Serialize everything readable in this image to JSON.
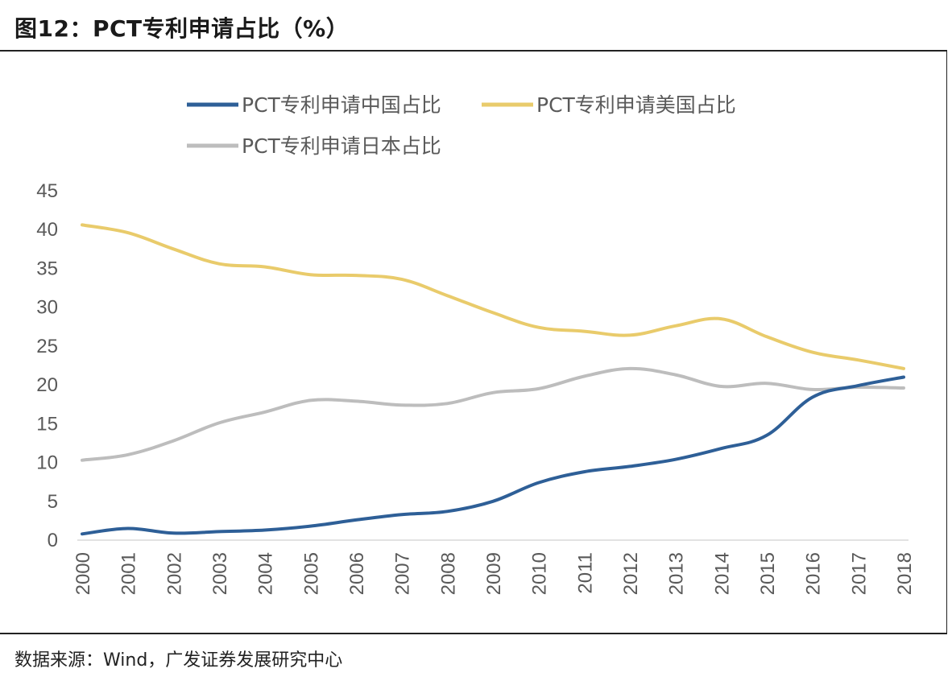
{
  "title": "图12：PCT专利申请占比（%）",
  "source": "数据来源：Wind，广发证券发展研究中心",
  "chart_data": {
    "type": "line",
    "title": "图12：PCT专利申请占比（%）",
    "xlabel": "",
    "ylabel": "",
    "ylim": [
      0,
      45
    ],
    "yticks": [
      0,
      5,
      10,
      15,
      20,
      25,
      30,
      35,
      40,
      45
    ],
    "categories": [
      "2000",
      "2001",
      "2002",
      "2003",
      "2004",
      "2005",
      "2006",
      "2007",
      "2008",
      "2009",
      "2010",
      "2011",
      "2012",
      "2013",
      "2014",
      "2015",
      "2016",
      "2017",
      "2018"
    ],
    "legend_position": "top",
    "grid": false,
    "series": [
      {
        "name": "PCT专利申请中国占比",
        "color": "#2e5f97",
        "values": [
          0.8,
          1.5,
          0.9,
          1.1,
          1.3,
          1.8,
          2.6,
          3.3,
          3.7,
          5.0,
          7.4,
          8.8,
          9.5,
          10.4,
          11.8,
          13.5,
          18.4,
          19.9,
          21.0
        ]
      },
      {
        "name": "PCT专利申请美国占比",
        "color": "#e9cb6b",
        "values": [
          40.6,
          39.6,
          37.5,
          35.6,
          35.2,
          34.2,
          34.1,
          33.6,
          31.5,
          29.3,
          27.4,
          26.9,
          26.4,
          27.6,
          28.5,
          26.2,
          24.2,
          23.2,
          22.1
        ]
      },
      {
        "name": "PCT专利申请日本占比",
        "color": "#bdbdbd",
        "values": [
          10.3,
          11.0,
          12.8,
          15.1,
          16.5,
          18.0,
          17.9,
          17.4,
          17.6,
          19.0,
          19.5,
          21.1,
          22.1,
          21.3,
          19.8,
          20.2,
          19.4,
          19.7,
          19.6
        ]
      }
    ]
  }
}
